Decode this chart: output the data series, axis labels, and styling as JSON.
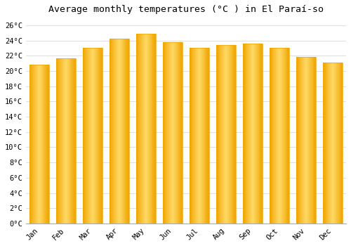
{
  "title": "Average monthly temperatures (°C ) in El Paraí­so",
  "months": [
    "Jan",
    "Feb",
    "Mar",
    "Apr",
    "May",
    "Jun",
    "Jul",
    "Aug",
    "Sep",
    "Oct",
    "Nov",
    "Dec"
  ],
  "values": [
    20.8,
    21.7,
    23.1,
    24.3,
    24.9,
    23.8,
    23.1,
    23.4,
    23.6,
    23.1,
    21.9,
    21.1
  ],
  "bar_color_center": "#FFD966",
  "bar_color_edge": "#F0A500",
  "background_color": "#ffffff",
  "grid_color": "#e0e0e0",
  "ylim": [
    0,
    27
  ],
  "yticks": [
    0,
    2,
    4,
    6,
    8,
    10,
    12,
    14,
    16,
    18,
    20,
    22,
    24,
    26
  ],
  "title_fontsize": 9.5,
  "tick_fontsize": 7.5,
  "bar_width": 0.75
}
